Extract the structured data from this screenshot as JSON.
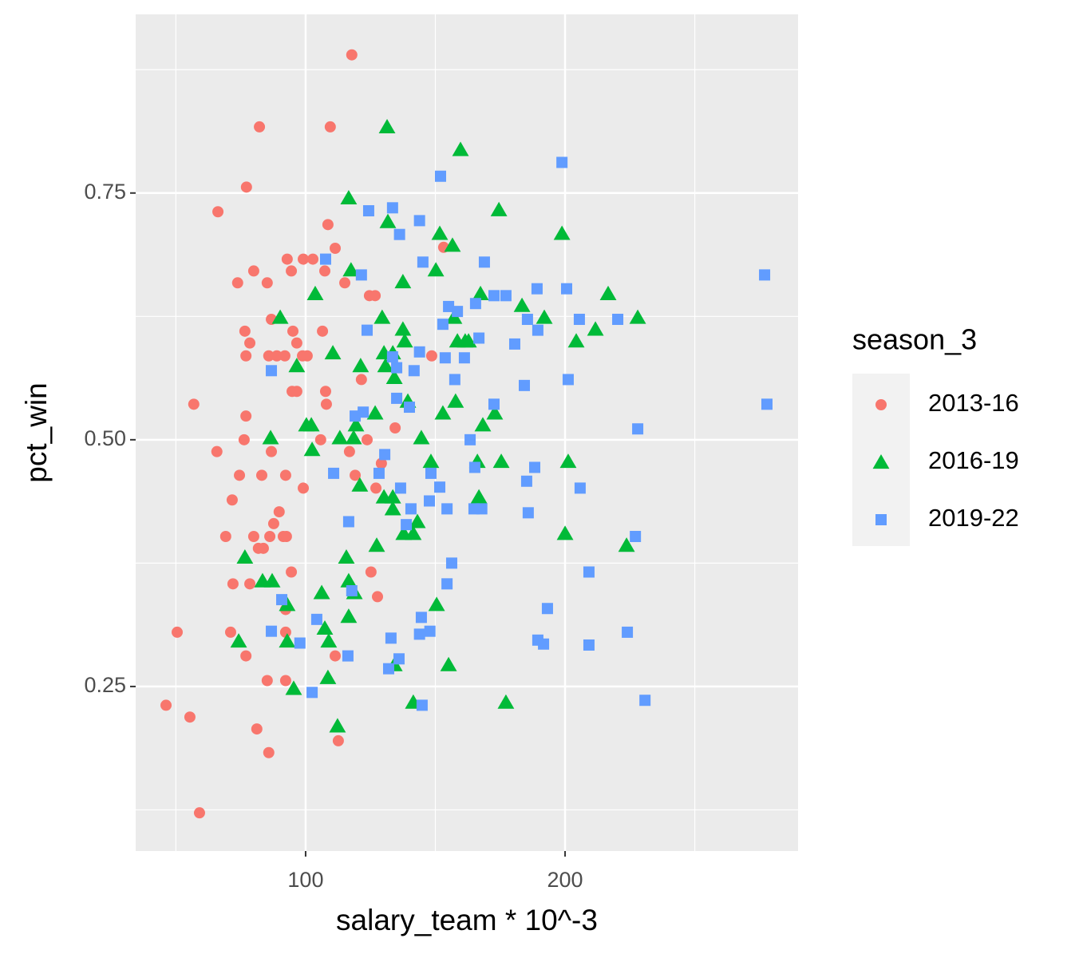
{
  "chart_data": {
    "type": "scatter",
    "x_label": "salary_team * 10^-3",
    "y_label": "pct_win",
    "legend_title": "season_3",
    "xlim": [
      34.5,
      289.8
    ],
    "ylim": [
      0.0833,
      0.931
    ],
    "xticks": [
      100,
      200
    ],
    "yticks": [
      0.25,
      {
        "value": 0.5,
        "label": "0.50"
      },
      0.75
    ],
    "grid": true,
    "minor_grid": true,
    "legend": "right",
    "series": [
      {
        "name": "2013-16",
        "color": "#F8766D",
        "shape": "circle",
        "x": [
          117.8,
          82.2,
          109.5,
          77.2,
          66.2,
          56.9,
          108.6,
          111.4,
          92.9,
          99.1,
          102.8,
          80.0,
          94.5,
          107.4,
          73.8,
          85.2,
          115.1,
          124.6,
          126.8,
          153.2,
          86.8,
          76.6,
          95.1,
          106.5,
          78.5,
          96.6,
          77.0,
          85.8,
          88.9,
          92.0,
          98.8,
          100.6,
          148.6,
          121.5,
          94.8,
          96.6,
          107.7,
          108.0,
          77.0,
          76.3,
          105.8,
          123.7,
          134.5,
          65.8,
          86.8,
          116.9,
          129.2,
          74.5,
          83.1,
          92.3,
          119.1,
          99.1,
          127.1,
          71.7,
          89.8,
          87.7,
          69.2,
          80.0,
          86.2,
          91.4,
          92.6,
          81.8,
          83.7,
          94.5,
          125.2,
          72.0,
          78.5,
          127.7,
          92.3,
          50.5,
          71.1,
          92.3,
          77.0,
          111.4,
          85.2,
          92.3,
          46.2,
          55.4,
          81.2,
          112.6,
          85.8,
          59.1
        ],
        "values": [
          0.89,
          0.817,
          0.817,
          0.756,
          0.731,
          0.536,
          0.718,
          0.694,
          0.683,
          0.683,
          0.683,
          0.671,
          0.671,
          0.671,
          0.659,
          0.659,
          0.659,
          0.646,
          0.646,
          0.695,
          0.622,
          0.61,
          0.61,
          0.61,
          0.598,
          0.598,
          0.585,
          0.585,
          0.585,
          0.585,
          0.585,
          0.585,
          0.585,
          0.561,
          0.549,
          0.549,
          0.549,
          0.536,
          0.524,
          0.5,
          0.5,
          0.5,
          0.512,
          0.488,
          0.488,
          0.488,
          0.476,
          0.464,
          0.464,
          0.464,
          0.464,
          0.451,
          0.451,
          0.439,
          0.427,
          0.415,
          0.402,
          0.402,
          0.402,
          0.402,
          0.402,
          0.39,
          0.39,
          0.366,
          0.366,
          0.354,
          0.354,
          0.341,
          0.328,
          0.305,
          0.305,
          0.305,
          0.281,
          0.281,
          0.256,
          0.256,
          0.231,
          0.219,
          0.207,
          0.195,
          0.183,
          0.122
        ]
      },
      {
        "name": "2016-19",
        "color": "#00BA38",
        "shape": "triangle",
        "x": [
          131.4,
          159.7,
          116.6,
          131.7,
          174.5,
          151.7,
          198.8,
          156.6,
          117.5,
          150.2,
          137.5,
          103.7,
          167.4,
          216.6,
          183.4,
          90.2,
          129.5,
          157.2,
          192.0,
          228.0,
          211.7,
          137.5,
          204.3,
          158.5,
          161.5,
          162.8,
          138.2,
          110.5,
          130.2,
          133.6,
          96.6,
          121.2,
          130.8,
          134.2,
          139.4,
          157.8,
          172.9,
          126.8,
          152.9,
          119.4,
          100.3,
          102.2,
          168.3,
          86.5,
          113.2,
          118.5,
          144.6,
          102.5,
          148.3,
          166.2,
          175.4,
          201.2,
          120.9,
          130.2,
          133.6,
          166.8,
          133.6,
          143.1,
          137.8,
          141.5,
          200.0,
          127.4,
          223.7,
          76.6,
          115.7,
          83.4,
          87.1,
          116.6,
          118.8,
          106.2,
          92.9,
          150.5,
          116.6,
          107.4,
          74.2,
          92.9,
          108.9,
          155.1,
          134.2,
          108.6,
          95.4,
          141.5,
          177.2,
          112.3
        ],
        "values": [
          0.817,
          0.794,
          0.745,
          0.721,
          0.733,
          0.709,
          0.709,
          0.697,
          0.672,
          0.672,
          0.66,
          0.648,
          0.648,
          0.648,
          0.636,
          0.624,
          0.624,
          0.624,
          0.624,
          0.624,
          0.612,
          0.612,
          0.6,
          0.6,
          0.6,
          0.6,
          0.6,
          0.588,
          0.588,
          0.588,
          0.575,
          0.575,
          0.575,
          0.563,
          0.539,
          0.539,
          0.527,
          0.527,
          0.527,
          0.515,
          0.515,
          0.515,
          0.515,
          0.502,
          0.502,
          0.502,
          0.502,
          0.49,
          0.478,
          0.478,
          0.478,
          0.478,
          0.454,
          0.442,
          0.442,
          0.442,
          0.43,
          0.417,
          0.405,
          0.405,
          0.405,
          0.393,
          0.393,
          0.381,
          0.381,
          0.357,
          0.357,
          0.357,
          0.345,
          0.345,
          0.333,
          0.333,
          0.321,
          0.309,
          0.296,
          0.296,
          0.296,
          0.272,
          0.272,
          0.259,
          0.248,
          0.234,
          0.234,
          0.21
        ]
      },
      {
        "name": "2019-22",
        "color": "#619CFF",
        "shape": "square",
        "x": [
          198.8,
          152.0,
          124.3,
          133.5,
          143.9,
          136.2,
          107.7,
          145.2,
          168.9,
          121.5,
          276.9,
          189.2,
          200.6,
          172.6,
          177.2,
          165.5,
          155.1,
          158.5,
          185.5,
          205.5,
          220.3,
          152.9,
          123.7,
          189.5,
          166.8,
          180.6,
          133.5,
          143.9,
          153.8,
          161.2,
          135.1,
          86.8,
          141.8,
          157.5,
          201.2,
          184.3,
          135.1,
          172.6,
          277.8,
          140.0,
          122.2,
          119.1,
          228.0,
          163.4,
          130.5,
          165.2,
          188.3,
          128.3,
          110.8,
          148.3,
          185.2,
          151.7,
          136.6,
          205.8,
          147.7,
          140.6,
          154.5,
          164.9,
          167.9,
          185.8,
          138.8,
          116.6,
          227.1,
          156.3,
          209.2,
          154.5,
          117.8,
          90.8,
          193.2,
          144.6,
          104.3,
          86.8,
          143.9,
          147.9,
          224.0,
          132.9,
          189.5,
          97.8,
          191.7,
          209.2,
          116.3,
          136.0,
          132.0,
          102.5,
          230.8,
          144.9
        ],
        "values": [
          0.781,
          0.767,
          0.732,
          0.735,
          0.722,
          0.708,
          0.683,
          0.68,
          0.68,
          0.667,
          0.667,
          0.653,
          0.653,
          0.646,
          0.646,
          0.638,
          0.635,
          0.63,
          0.622,
          0.622,
          0.622,
          0.617,
          0.611,
          0.611,
          0.603,
          0.597,
          0.584,
          0.589,
          0.583,
          0.583,
          0.573,
          0.57,
          0.57,
          0.561,
          0.561,
          0.555,
          0.542,
          0.536,
          0.536,
          0.533,
          0.528,
          0.524,
          0.511,
          0.5,
          0.485,
          0.472,
          0.472,
          0.466,
          0.466,
          0.466,
          0.458,
          0.452,
          0.451,
          0.451,
          0.438,
          0.43,
          0.43,
          0.43,
          0.43,
          0.426,
          0.414,
          0.417,
          0.402,
          0.375,
          0.366,
          0.354,
          0.347,
          0.338,
          0.329,
          0.32,
          0.318,
          0.306,
          0.303,
          0.306,
          0.305,
          0.299,
          0.297,
          0.294,
          0.293,
          0.292,
          0.281,
          0.278,
          0.268,
          0.244,
          0.236,
          0.231
        ]
      }
    ]
  }
}
